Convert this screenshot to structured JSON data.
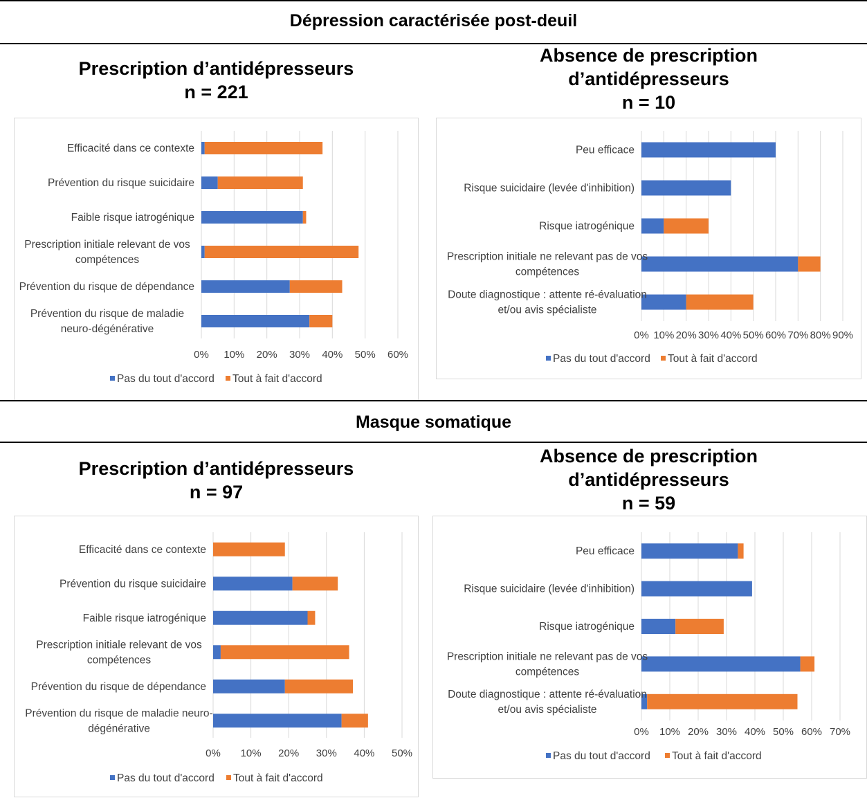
{
  "sections": [
    {
      "title": "Dépression caractérisée post-deuil"
    },
    {
      "title": "Masque somatique"
    }
  ],
  "chart_data": [
    {
      "type": "bar",
      "orientation": "horizontal",
      "stacked": true,
      "heading": [
        "Prescription d’antidépresseurs",
        "n = 221"
      ],
      "categories": [
        "Efficacité dans ce contexte",
        "Prévention du risque suicidaire",
        "Faible risque iatrogénique",
        "Prescription initiale relevant de vos compétences",
        "Prévention du risque de dépendance",
        "Prévention du risque de maladie neuro-dégénérative"
      ],
      "category_lines": [
        [
          "Efficacité dans ce contexte"
        ],
        [
          "Prévention du risque suicidaire"
        ],
        [
          "Faible risque iatrogénique"
        ],
        [
          "Prescription initiale relevant de vos",
          "compétences"
        ],
        [
          "Prévention du risque de dépendance"
        ],
        [
          "Prévention du risque de maladie",
          "neuro-dégénérative"
        ]
      ],
      "series": [
        {
          "name": "Pas du tout d'accord",
          "color": "#4472C4",
          "values": [
            1,
            5,
            31,
            1,
            27,
            33
          ]
        },
        {
          "name": "Tout à fait d'accord",
          "color": "#ED7D31",
          "values": [
            36,
            26,
            1,
            47,
            16,
            7
          ]
        }
      ],
      "xlim": [
        0,
        60
      ],
      "x_ticks": [
        "0%",
        "10%",
        "20%",
        "30%",
        "40%",
        "50%",
        "60%"
      ],
      "grid": true,
      "legend": "bottom"
    },
    {
      "type": "bar",
      "orientation": "horizontal",
      "stacked": true,
      "heading": [
        "Absence de prescription",
        "d’antidépresseurs",
        "n = 10"
      ],
      "categories": [
        "Peu efficace",
        "Risque suicidaire (levée d'inhibition)",
        "Risque iatrogénique",
        "Prescription initiale ne relevant pas de vos compétences",
        "Doute diagnostique : attente ré-évaluation et/ou avis spécialiste"
      ],
      "category_lines": [
        [
          "Peu efficace"
        ],
        [
          "Risque suicidaire (levée d'inhibition)"
        ],
        [
          "Risque iatrogénique"
        ],
        [
          "Prescription initiale ne relevant pas de vos",
          "compétences"
        ],
        [
          "Doute diagnostique : attente ré-évaluation",
          "et/ou avis spécialiste"
        ]
      ],
      "series": [
        {
          "name": "Pas du tout d'accord",
          "color": "#4472C4",
          "values": [
            60,
            40,
            10,
            70,
            20
          ]
        },
        {
          "name": "Tout à fait d'accord",
          "color": "#ED7D31",
          "values": [
            0,
            0,
            20,
            10,
            30
          ]
        }
      ],
      "xlim": [
        0,
        90
      ],
      "x_ticks": [
        "0%",
        "10%",
        "20%",
        "30%",
        "40%",
        "50%",
        "60%",
        "70%",
        "80%",
        "90%"
      ],
      "grid": true,
      "legend": "bottom"
    },
    {
      "type": "bar",
      "orientation": "horizontal",
      "stacked": true,
      "heading": [
        "Prescription d’antidépresseurs",
        "n = 97"
      ],
      "categories": [
        "Efficacité dans ce contexte",
        "Prévention du risque suicidaire",
        "Faible risque iatrogénique",
        "Prescription initiale relevant de vos compétences",
        "Prévention du risque de dépendance",
        "Prévention du risque de maladie neuro-dégénérative"
      ],
      "category_lines": [
        [
          "Efficacité dans ce contexte"
        ],
        [
          "Prévention du risque suicidaire"
        ],
        [
          "Faible risque iatrogénique"
        ],
        [
          "Prescription initiale relevant de vos",
          "compétences"
        ],
        [
          "Prévention du risque de dépendance"
        ],
        [
          "Prévention du risque de maladie neuro-",
          "dégénérative"
        ]
      ],
      "series": [
        {
          "name": "Pas du tout d'accord",
          "color": "#4472C4",
          "values": [
            0,
            21,
            25,
            2,
            19,
            34
          ]
        },
        {
          "name": "Tout à fait d'accord",
          "color": "#ED7D31",
          "values": [
            19,
            12,
            2,
            34,
            18,
            7
          ]
        }
      ],
      "xlim": [
        0,
        50
      ],
      "x_ticks": [
        "0%",
        "10%",
        "20%",
        "30%",
        "40%",
        "50%"
      ],
      "grid": true,
      "legend": "bottom"
    },
    {
      "type": "bar",
      "orientation": "horizontal",
      "stacked": true,
      "heading": [
        "Absence de prescription",
        "d’antidépresseurs",
        "n = 59"
      ],
      "categories": [
        "Peu efficace",
        "Risque suicidaire (levée d'inhibition)",
        "Risque iatrogénique",
        "Prescription initiale ne relevant pas de vos compétences",
        "Doute diagnostique : attente ré-évaluation et/ou avis spécialiste"
      ],
      "category_lines": [
        [
          "Peu efficace"
        ],
        [
          "Risque suicidaire (levée d'inhibition)"
        ],
        [
          "Risque iatrogénique"
        ],
        [
          "Prescription initiale ne relevant pas de vos",
          "compétences"
        ],
        [
          "Doute diagnostique : attente ré-évaluation",
          "et/ou avis spécialiste"
        ]
      ],
      "series": [
        {
          "name": "Pas du tout d'accord",
          "color": "#4472C4",
          "values": [
            34,
            39,
            12,
            56,
            2
          ]
        },
        {
          "name": "Tout à fait d'accord",
          "color": "#ED7D31",
          "values": [
            2,
            0,
            17,
            5,
            53
          ]
        }
      ],
      "xlim": [
        0,
        70
      ],
      "x_ticks": [
        "0%",
        "10%",
        "20%",
        "30%",
        "40%",
        "50%",
        "60%",
        "70%"
      ],
      "grid": true,
      "legend": "bottom"
    }
  ]
}
